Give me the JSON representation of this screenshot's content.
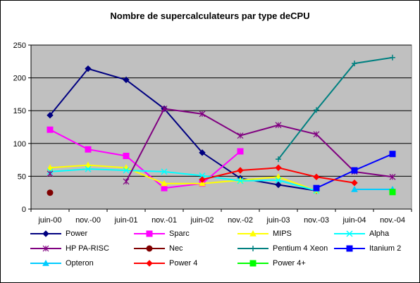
{
  "chart_data": {
    "type": "line",
    "title": "Nombre de supercalculateurs par type deCPU",
    "xlabel": "",
    "ylabel": "",
    "categories": [
      "juin-00",
      "nov.-00",
      "juin-01",
      "nov.-01",
      "juin-02",
      "nov.-02",
      "juin-03",
      "nov.-03",
      "juin-04",
      "nov.-04"
    ],
    "ylim": [
      0,
      250
    ],
    "yticks": [
      0,
      50,
      100,
      150,
      200,
      250
    ],
    "grid": true,
    "background": "#c0c0c0",
    "legend_position": "bottom",
    "series": [
      {
        "name": "Power",
        "color": "#000080",
        "marker": "diamond",
        "values": [
          143,
          214,
          197,
          153,
          86,
          47,
          37,
          28,
          null,
          null
        ]
      },
      {
        "name": "Sparc",
        "color": "#ff00ff",
        "marker": "square",
        "values": [
          121,
          91,
          81,
          32,
          39,
          88,
          null,
          null,
          null,
          null
        ]
      },
      {
        "name": "MIPS",
        "color": "#ffff00",
        "marker": "triangle",
        "values": [
          63,
          67,
          63,
          39,
          39,
          44,
          49,
          28,
          null,
          null
        ]
      },
      {
        "name": "Alpha",
        "color": "#00ffff",
        "marker": "x",
        "values": [
          57,
          61,
          59,
          57,
          51,
          43,
          44,
          28,
          null,
          null
        ]
      },
      {
        "name": "HP PA-RISC",
        "color": "#800080",
        "marker": "star",
        "values": [
          54,
          null,
          42,
          153,
          145,
          112,
          128,
          114,
          57,
          49
        ]
      },
      {
        "name": "Nec",
        "color": "#800000",
        "marker": "circle",
        "values": [
          25,
          null,
          null,
          null,
          null,
          null,
          null,
          null,
          null,
          null
        ]
      },
      {
        "name": "Pentium 4 Xeon",
        "color": "#008080",
        "marker": "plus",
        "values": [
          null,
          null,
          null,
          null,
          null,
          null,
          76,
          151,
          222,
          231
        ]
      },
      {
        "name": "Itanium 2",
        "color": "#0000ff",
        "marker": "square",
        "values": [
          null,
          null,
          null,
          null,
          null,
          null,
          null,
          32,
          59,
          84
        ]
      },
      {
        "name": "Opteron",
        "color": "#00ccff",
        "marker": "triangle",
        "values": [
          null,
          null,
          null,
          null,
          null,
          null,
          null,
          null,
          30,
          30
        ]
      },
      {
        "name": "Power 4",
        "color": "#ff0000",
        "marker": "diamond",
        "values": [
          null,
          null,
          null,
          null,
          45,
          59,
          63,
          49,
          40,
          null
        ]
      },
      {
        "name": "Power 4+",
        "color": "#00ff00",
        "marker": "square",
        "values": [
          null,
          null,
          null,
          null,
          null,
          null,
          null,
          null,
          null,
          26
        ]
      }
    ]
  }
}
